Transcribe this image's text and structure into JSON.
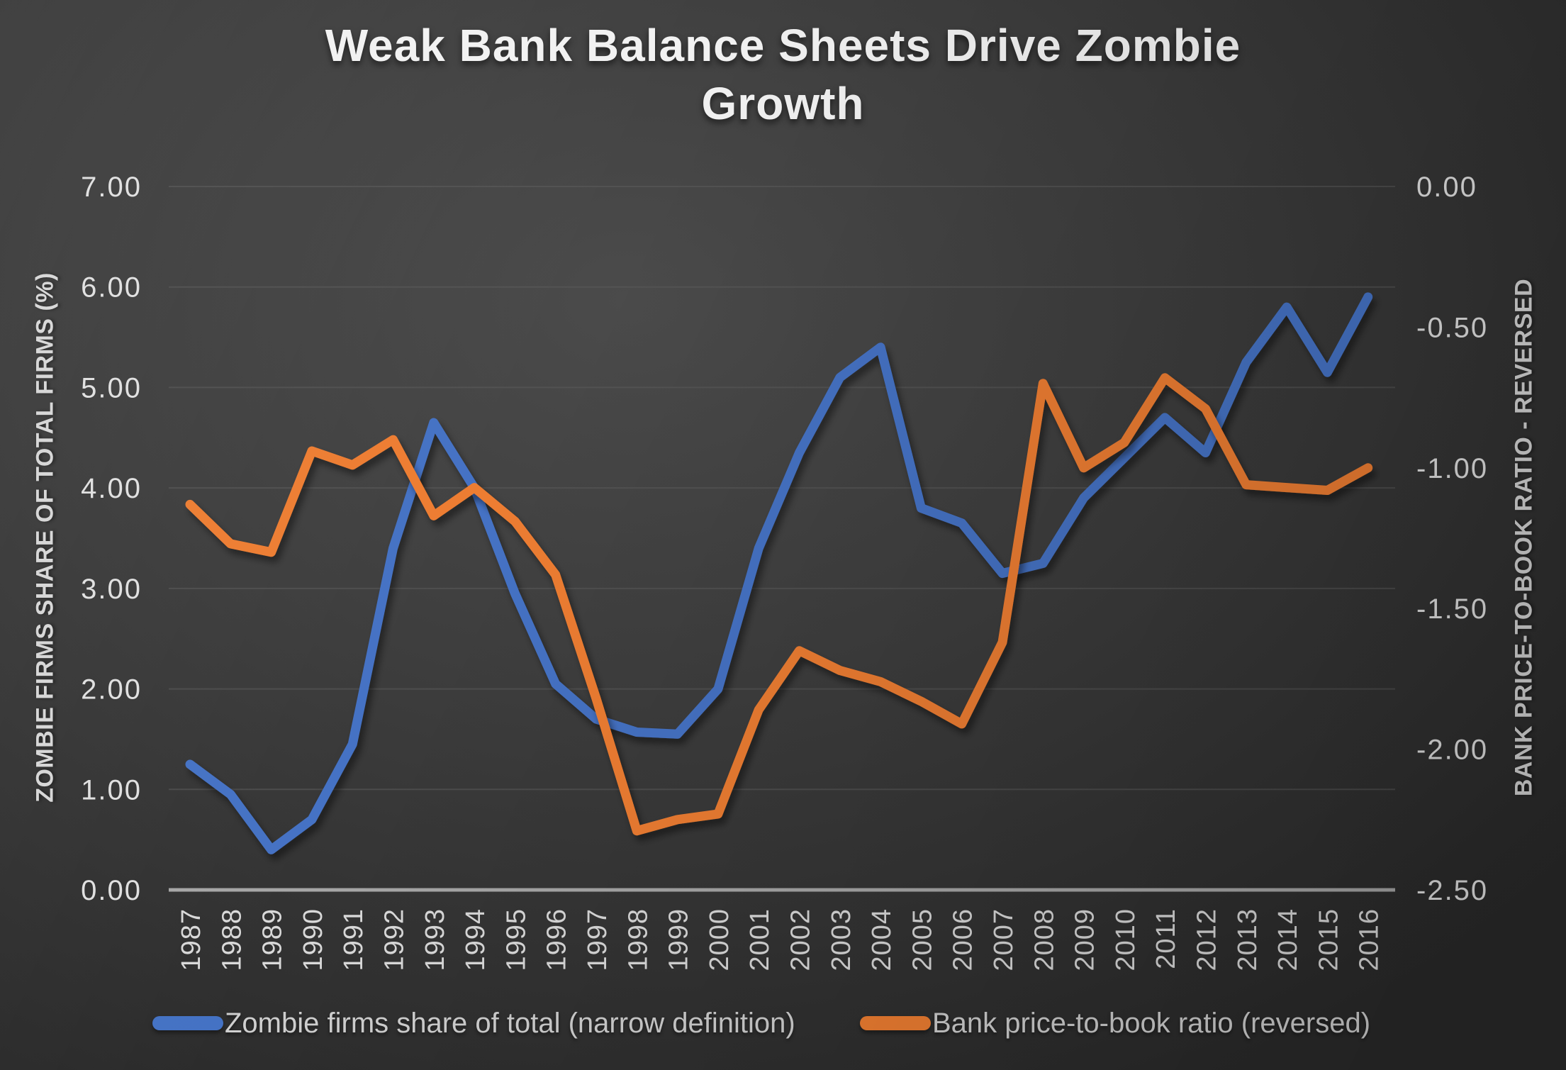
{
  "title": {
    "line1": "Weak Bank Balance Sheets Drive Zombie",
    "line2": "Growth"
  },
  "chart_data": {
    "type": "line",
    "x": [
      "1987",
      "1988",
      "1989",
      "1990",
      "1991",
      "1992",
      "1993",
      "1994",
      "1995",
      "1996",
      "1997",
      "1998",
      "1999",
      "2000",
      "2001",
      "2002",
      "2003",
      "2004",
      "2005",
      "2006",
      "2007",
      "2008",
      "2009",
      "2010",
      "2011",
      "2012",
      "2013",
      "2014",
      "2015",
      "2016"
    ],
    "series": [
      {
        "name": "Zombie firms share of total (narrow definition)",
        "axis": "left",
        "color": "#4472C4",
        "values": [
          1.25,
          0.95,
          0.4,
          0.7,
          1.45,
          3.4,
          4.65,
          4.0,
          2.95,
          2.05,
          1.7,
          1.57,
          1.55,
          2.0,
          3.4,
          4.35,
          5.1,
          5.4,
          3.8,
          3.65,
          3.15,
          3.25,
          3.9,
          4.3,
          4.7,
          4.35,
          5.25,
          5.8,
          5.15,
          5.9
        ]
      },
      {
        "name": "Bank price-to-book ratio (reversed)",
        "axis": "right",
        "color": "#ED7D31",
        "values": [
          -1.13,
          -1.27,
          -1.3,
          -0.94,
          -0.99,
          -0.9,
          -1.17,
          -1.07,
          -1.19,
          -1.38,
          -1.82,
          -2.29,
          -2.25,
          -2.23,
          -1.86,
          -1.65,
          -1.72,
          -1.76,
          -1.83,
          -1.91,
          -1.62,
          -0.7,
          -1.0,
          -0.91,
          -0.68,
          -0.79,
          -1.06,
          -1.07,
          -1.08,
          -1.0
        ]
      }
    ],
    "left_axis": {
      "label": "ZOMBIE FIRMS SHARE OF TOTAL FIRMS (%)",
      "ticks": [
        "7.00",
        "6.00",
        "5.00",
        "4.00",
        "3.00",
        "2.00",
        "1.00",
        "0.00"
      ],
      "range": [
        0,
        7
      ]
    },
    "right_axis": {
      "label": "BANK PRICE-TO-BOOK RATIO - REVERSED",
      "ticks": [
        "0.00",
        "-0.50",
        "-1.00",
        "-1.50",
        "-2.00",
        "-2.50"
      ],
      "range": [
        0,
        -2.5
      ]
    },
    "legend_position": "bottom",
    "grid": true
  },
  "colors": {
    "background_center": "#4b4b4b",
    "background_edge": "#2a2a2a",
    "gridline": "#5c5c5c",
    "axis_line": "#a6a6a6",
    "tick_text": "#e0e0e0",
    "legend_text": "#cfcfcf",
    "series_blue": "#4472C4",
    "series_orange": "#ED7D31"
  }
}
